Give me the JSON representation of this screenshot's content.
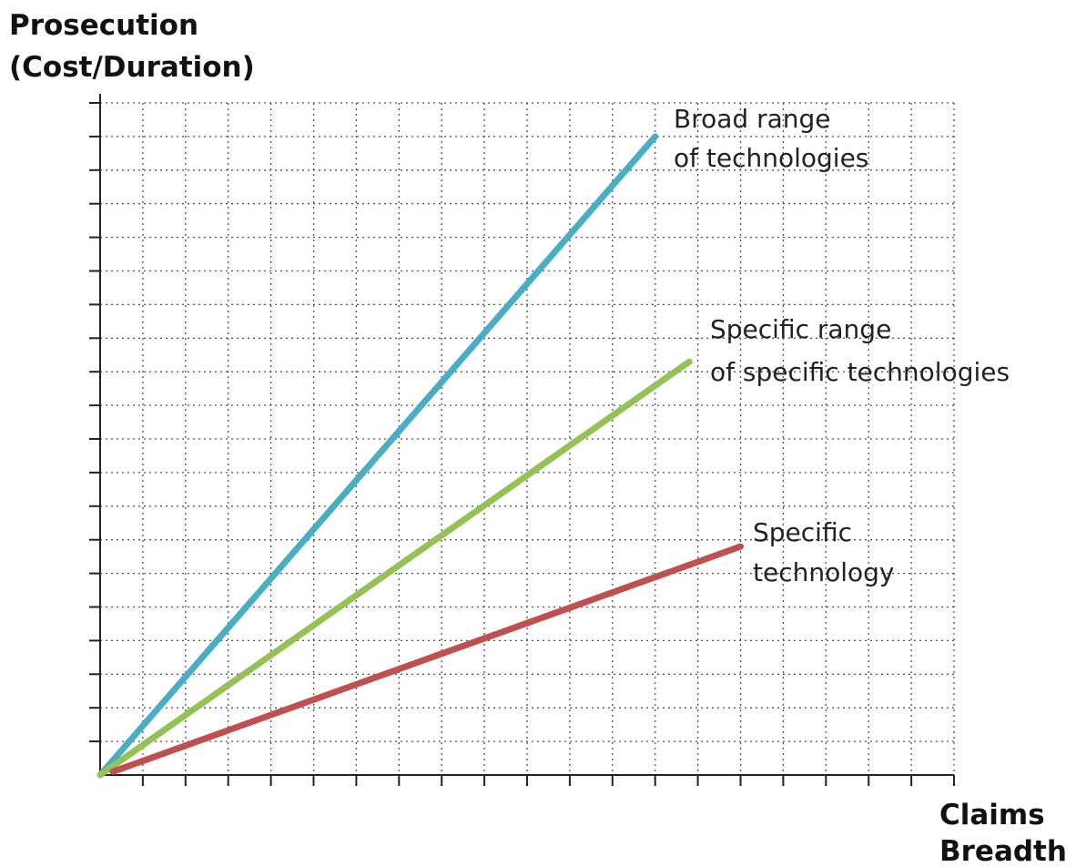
{
  "chart_data": {
    "type": "line",
    "ylabel_line1": "Prosecution",
    "ylabel_line2": "(Cost/Duration)",
    "xlabel_line1": "Claims",
    "xlabel_line2": "Breadth",
    "grid": true,
    "xlim": [
      0,
      20
    ],
    "ylim": [
      0,
      20
    ],
    "x_ticks": 20,
    "y_ticks": 20,
    "series": [
      {
        "name_line1": "Broad range",
        "name_line2": "of technologies",
        "color": "#4aaec3",
        "x": [
          0,
          13
        ],
        "y": [
          0,
          19
        ]
      },
      {
        "name_line1": "Specific range",
        "name_line2": "of specific technologies",
        "color": "#95c155",
        "x": [
          0,
          13.8
        ],
        "y": [
          0,
          12.3
        ]
      },
      {
        "name_line1": "Specific",
        "name_line2": "technology",
        "color": "#c0504d",
        "x": [
          0.3,
          15
        ],
        "y": [
          0.1,
          6.8
        ]
      }
    ]
  }
}
